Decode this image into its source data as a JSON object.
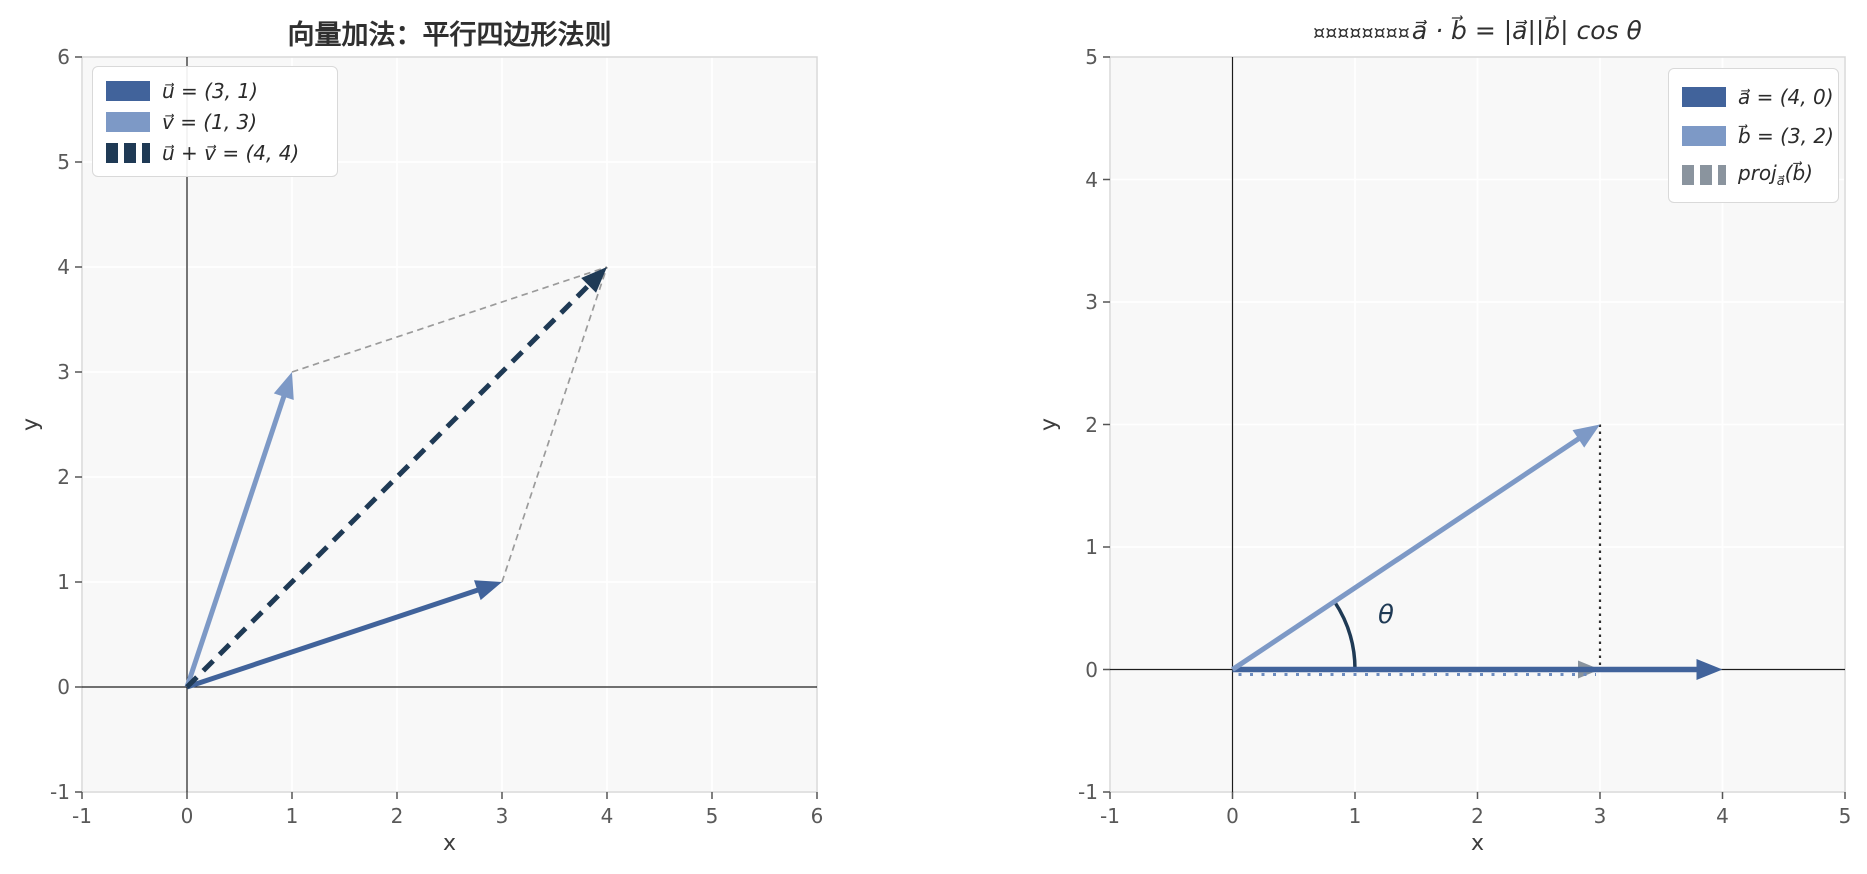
{
  "figure": {
    "background": "#ffffff",
    "axes_background": "#f8f8f8",
    "grid_color": "#ffffff",
    "spine_color": "#d8d8d8",
    "axis_line_color": "#1c1c1c",
    "tick_color": "#595959"
  },
  "chart_data": [
    {
      "type": "vector-plot",
      "title": "向量加法：平行四边形法则",
      "xlabel": "x",
      "ylabel": "y",
      "xlim": [
        -1,
        6
      ],
      "ylim": [
        -1,
        6
      ],
      "xticks": [
        "-1",
        "0",
        "1",
        "2",
        "3",
        "4",
        "5",
        "6"
      ],
      "yticks": [
        "-1",
        "0",
        "1",
        "2",
        "3",
        "4",
        "5",
        "6"
      ],
      "grid": true,
      "legend_position": "upper left",
      "vectors": [
        {
          "label": "u⃗ = (3, 1)",
          "x": 3,
          "y": 1,
          "color": "#41639B",
          "style": "solid",
          "width": 5,
          "head": [
            26,
            10.5
          ]
        },
        {
          "label": "v⃗ = (1, 3)",
          "x": 1,
          "y": 3,
          "color": "#7D99C6",
          "style": "solid",
          "width": 5,
          "head": [
            26,
            10.5
          ]
        },
        {
          "label": "u⃗ + v⃗ = (4, 4)",
          "x": 4,
          "y": 4,
          "color": "#1F3A55",
          "style": "dashed",
          "width": 5,
          "head": [
            26,
            10.5
          ]
        }
      ],
      "helper_lines": [
        {
          "from": [
            3,
            1
          ],
          "to": [
            4,
            4
          ]
        },
        {
          "from": [
            1,
            3
          ],
          "to": [
            4,
            4
          ]
        }
      ],
      "helper_color": "#9b9b9b"
    },
    {
      "type": "vector-plot",
      "title_prefix": "¤¤¤¤¤¤¤¤",
      "title_math": "a⃗ · b⃗ = |a⃗||b⃗| cos θ",
      "xlabel": "x",
      "ylabel": "y",
      "xlim": [
        -1,
        5
      ],
      "ylim": [
        -1,
        5
      ],
      "xticks": [
        "-1",
        "0",
        "1",
        "2",
        "3",
        "4",
        "5"
      ],
      "yticks": [
        "-1",
        "0",
        "1",
        "2",
        "3",
        "4",
        "5"
      ],
      "grid": true,
      "legend_position": "upper right",
      "vectors": [
        {
          "label": "a⃗ = (4, 0)",
          "x": 4,
          "y": 0,
          "color": "#41639B",
          "style": "solid",
          "width": 5.5,
          "head": [
            26,
            10.5
          ]
        },
        {
          "label": "b⃗ = (3, 2)",
          "x": 3,
          "y": 2,
          "color": "#7D99C6",
          "style": "solid",
          "width": 5,
          "head": [
            26,
            10.5
          ]
        },
        {
          "label_parts": [
            "proj",
            "a⃗",
            "(b⃗)"
          ],
          "x": 3,
          "y": 0,
          "color": "#8A949E",
          "style": "dashed",
          "width": 5,
          "head": [
            22,
            9
          ]
        }
      ],
      "angle": {
        "label": "θ",
        "degrees": 33.69,
        "radius": 1.0,
        "color": "#1F3A55"
      },
      "drop_line": {
        "from": [
          3,
          2
        ],
        "to": [
          3,
          0
        ],
        "color": "#2e2e2e"
      },
      "axis_dots": {
        "from": [
          0,
          0
        ],
        "to": [
          3,
          0
        ],
        "color": "#6D8CBF"
      }
    }
  ]
}
